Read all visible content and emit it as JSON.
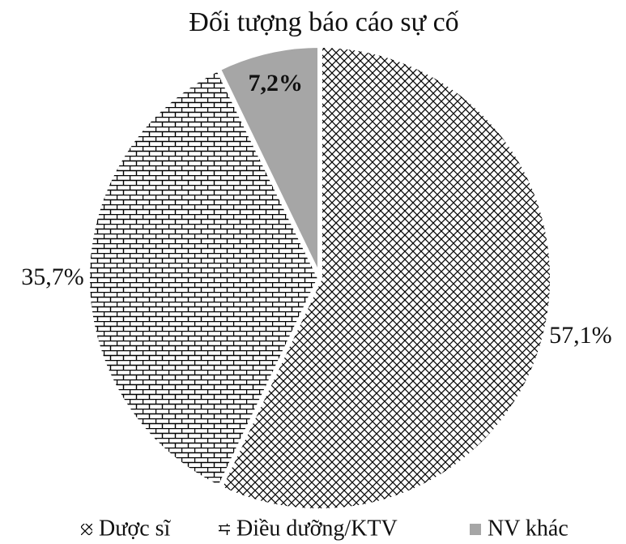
{
  "chart_data": {
    "type": "pie",
    "title": "Đối tượng báo cáo sự cố",
    "categories": [
      "Dược sĩ",
      "Điều dưỡng/KTV",
      "NV khác"
    ],
    "values": [
      57.1,
      35.7,
      7.2
    ],
    "value_labels": [
      "57,1%",
      "35,7%",
      "7,2%"
    ],
    "colors": [
      "#000000",
      "#000000",
      "#a6a6a6"
    ],
    "legend": "bottom"
  }
}
